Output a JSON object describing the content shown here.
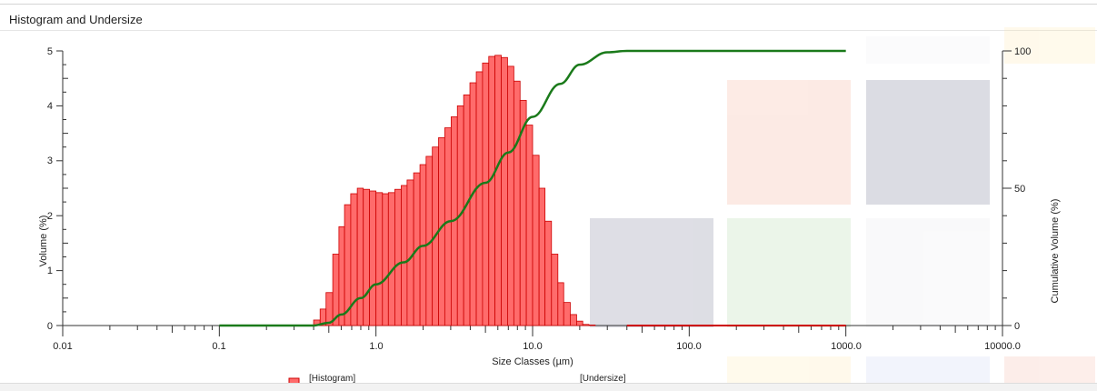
{
  "window": {
    "title": "Histogram and Undersize"
  },
  "chart_data": {
    "type": "bar",
    "title": "",
    "xlabel": "Size Classes (µm)",
    "ylabel": "Volume (%)",
    "y2label": "Cumulative Volume (%)",
    "xscale": "log",
    "xlim": [
      0.01,
      10000
    ],
    "ylim": [
      0,
      5
    ],
    "y2lim": [
      0,
      100
    ],
    "x_tick_labels": [
      "0.01",
      "0.1",
      "1.0",
      "10.0",
      "100.0",
      "1000.0",
      "10000.0"
    ],
    "y_tick_labels": [
      "0",
      "1",
      "2",
      "3",
      "4",
      "5"
    ],
    "y2_tick_labels": [
      "0",
      "50",
      "100"
    ],
    "grid": false,
    "legend": [
      "[Histogram]",
      "[Undersize]"
    ],
    "histogram_color": "#ff6b6b",
    "histogram_edge": "#cc0000",
    "undersize_color": "#1a7a1a",
    "bar_bin_edges": [
      0.4,
      0.44,
      0.48,
      0.53,
      0.58,
      0.63,
      0.69,
      0.76,
      0.83,
      0.91,
      1.0,
      1.1,
      1.2,
      1.32,
      1.45,
      1.58,
      1.74,
      1.91,
      2.09,
      2.29,
      2.51,
      2.75,
      3.02,
      3.31,
      3.63,
      3.98,
      4.37,
      4.79,
      5.25,
      5.75,
      6.31,
      6.92,
      7.59,
      8.32,
      9.12,
      10.0,
      11.0,
      12.0,
      13.2,
      14.5,
      15.8,
      17.4,
      19.1,
      20.9,
      22.9,
      25.1,
      27.5,
      30.2,
      33.1,
      36.3,
      39.8
    ],
    "bar_values": [
      0.1,
      0.3,
      0.6,
      1.3,
      1.8,
      2.2,
      2.4,
      2.5,
      2.48,
      2.45,
      2.42,
      2.4,
      2.42,
      2.48,
      2.55,
      2.65,
      2.78,
      2.93,
      3.08,
      3.25,
      3.42,
      3.6,
      3.8,
      4.0,
      4.2,
      4.42,
      4.62,
      4.78,
      4.9,
      4.92,
      4.88,
      4.72,
      4.45,
      4.1,
      3.65,
      3.1,
      2.5,
      1.9,
      1.3,
      0.78,
      0.42,
      0.2,
      0.08,
      0.02,
      0.01,
      0.0,
      0.0,
      0.0,
      0.0,
      0.0
    ],
    "undersize_x": [
      0.1,
      0.4,
      0.5,
      0.6,
      0.8,
      1.0,
      1.5,
      2.0,
      3.0,
      5.0,
      7.0,
      10.0,
      15.0,
      20.0,
      30.0,
      40.0,
      100.0,
      1000.0
    ],
    "undersize_y": [
      0,
      0,
      1,
      4,
      10,
      15,
      23,
      29,
      38,
      52,
      63,
      76,
      88,
      95,
      99.5,
      100,
      100,
      100
    ]
  }
}
